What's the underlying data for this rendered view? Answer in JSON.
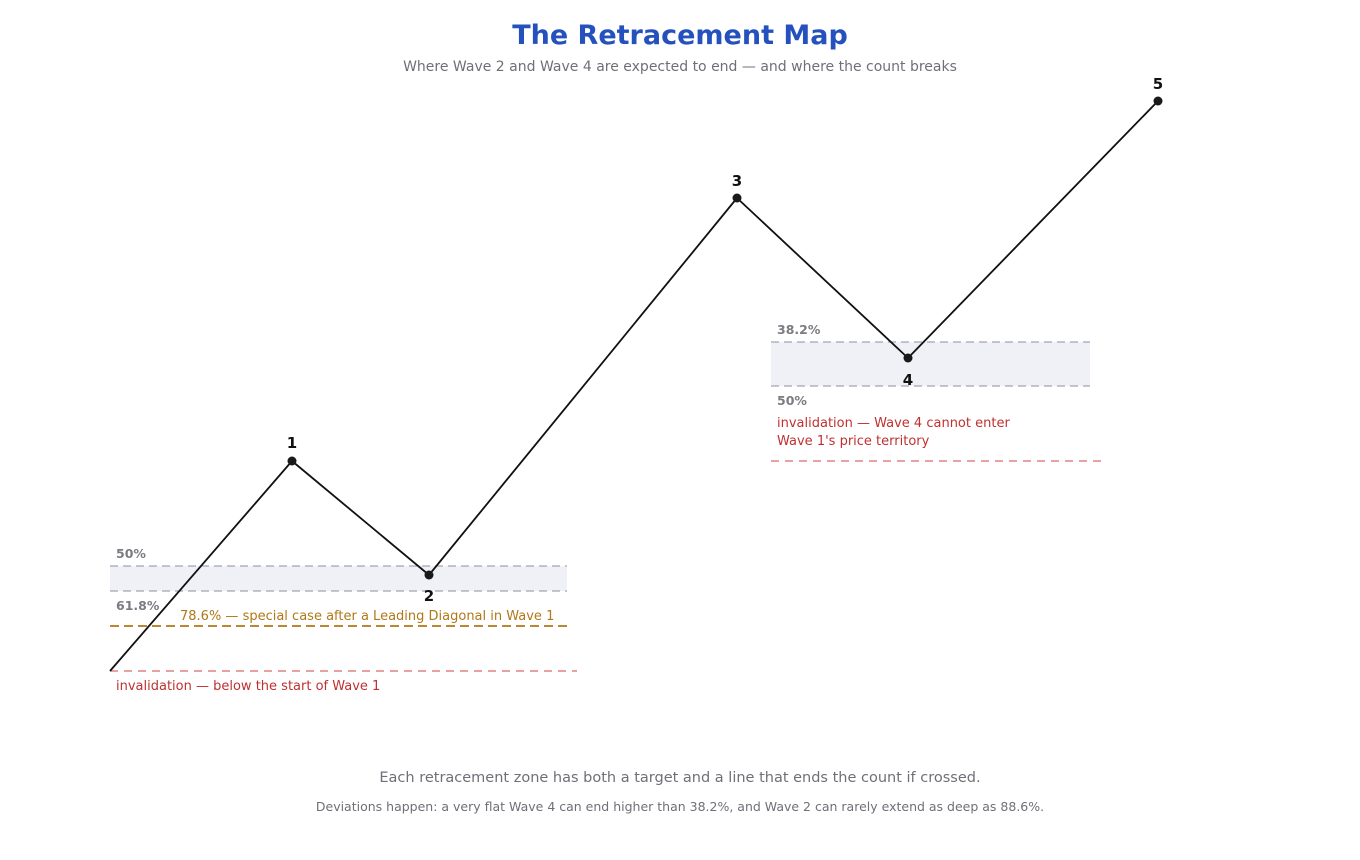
{
  "title": "The Retracement Map",
  "subtitle": "Where Wave 2 and Wave 4 are expected to end — and where the count breaks",
  "footer": {
    "line1": "Each retracement zone has both a target and a line that ends the count if crossed.",
    "line2": "Deviations happen: a very flat Wave 4 can end higher than 38.2%, and Wave 2 can rarely extend as deep as 88.6%."
  },
  "waves": {
    "w1": "1",
    "w2": "2",
    "w3": "3",
    "w4": "4",
    "w5": "5"
  },
  "wave2_zone": {
    "upper_label": "50%",
    "lower_label": "61.8%",
    "special_label": "78.6% — special case after a Leading Diagonal in Wave 1",
    "invalidation_label": "invalidation — below the start of Wave 1"
  },
  "wave4_zone": {
    "upper_label": "38.2%",
    "lower_label": "50%",
    "invalidation_line1": "invalidation — Wave 4 cannot enter",
    "invalidation_line2": "Wave 1's price territory"
  },
  "colors": {
    "title": "#2451bd",
    "zone_fill": "#eff1f6",
    "zone_line": "#a0a4b4",
    "invalidation": "#d96a6a",
    "special": "#b07818",
    "wave_line": "#111111"
  }
}
